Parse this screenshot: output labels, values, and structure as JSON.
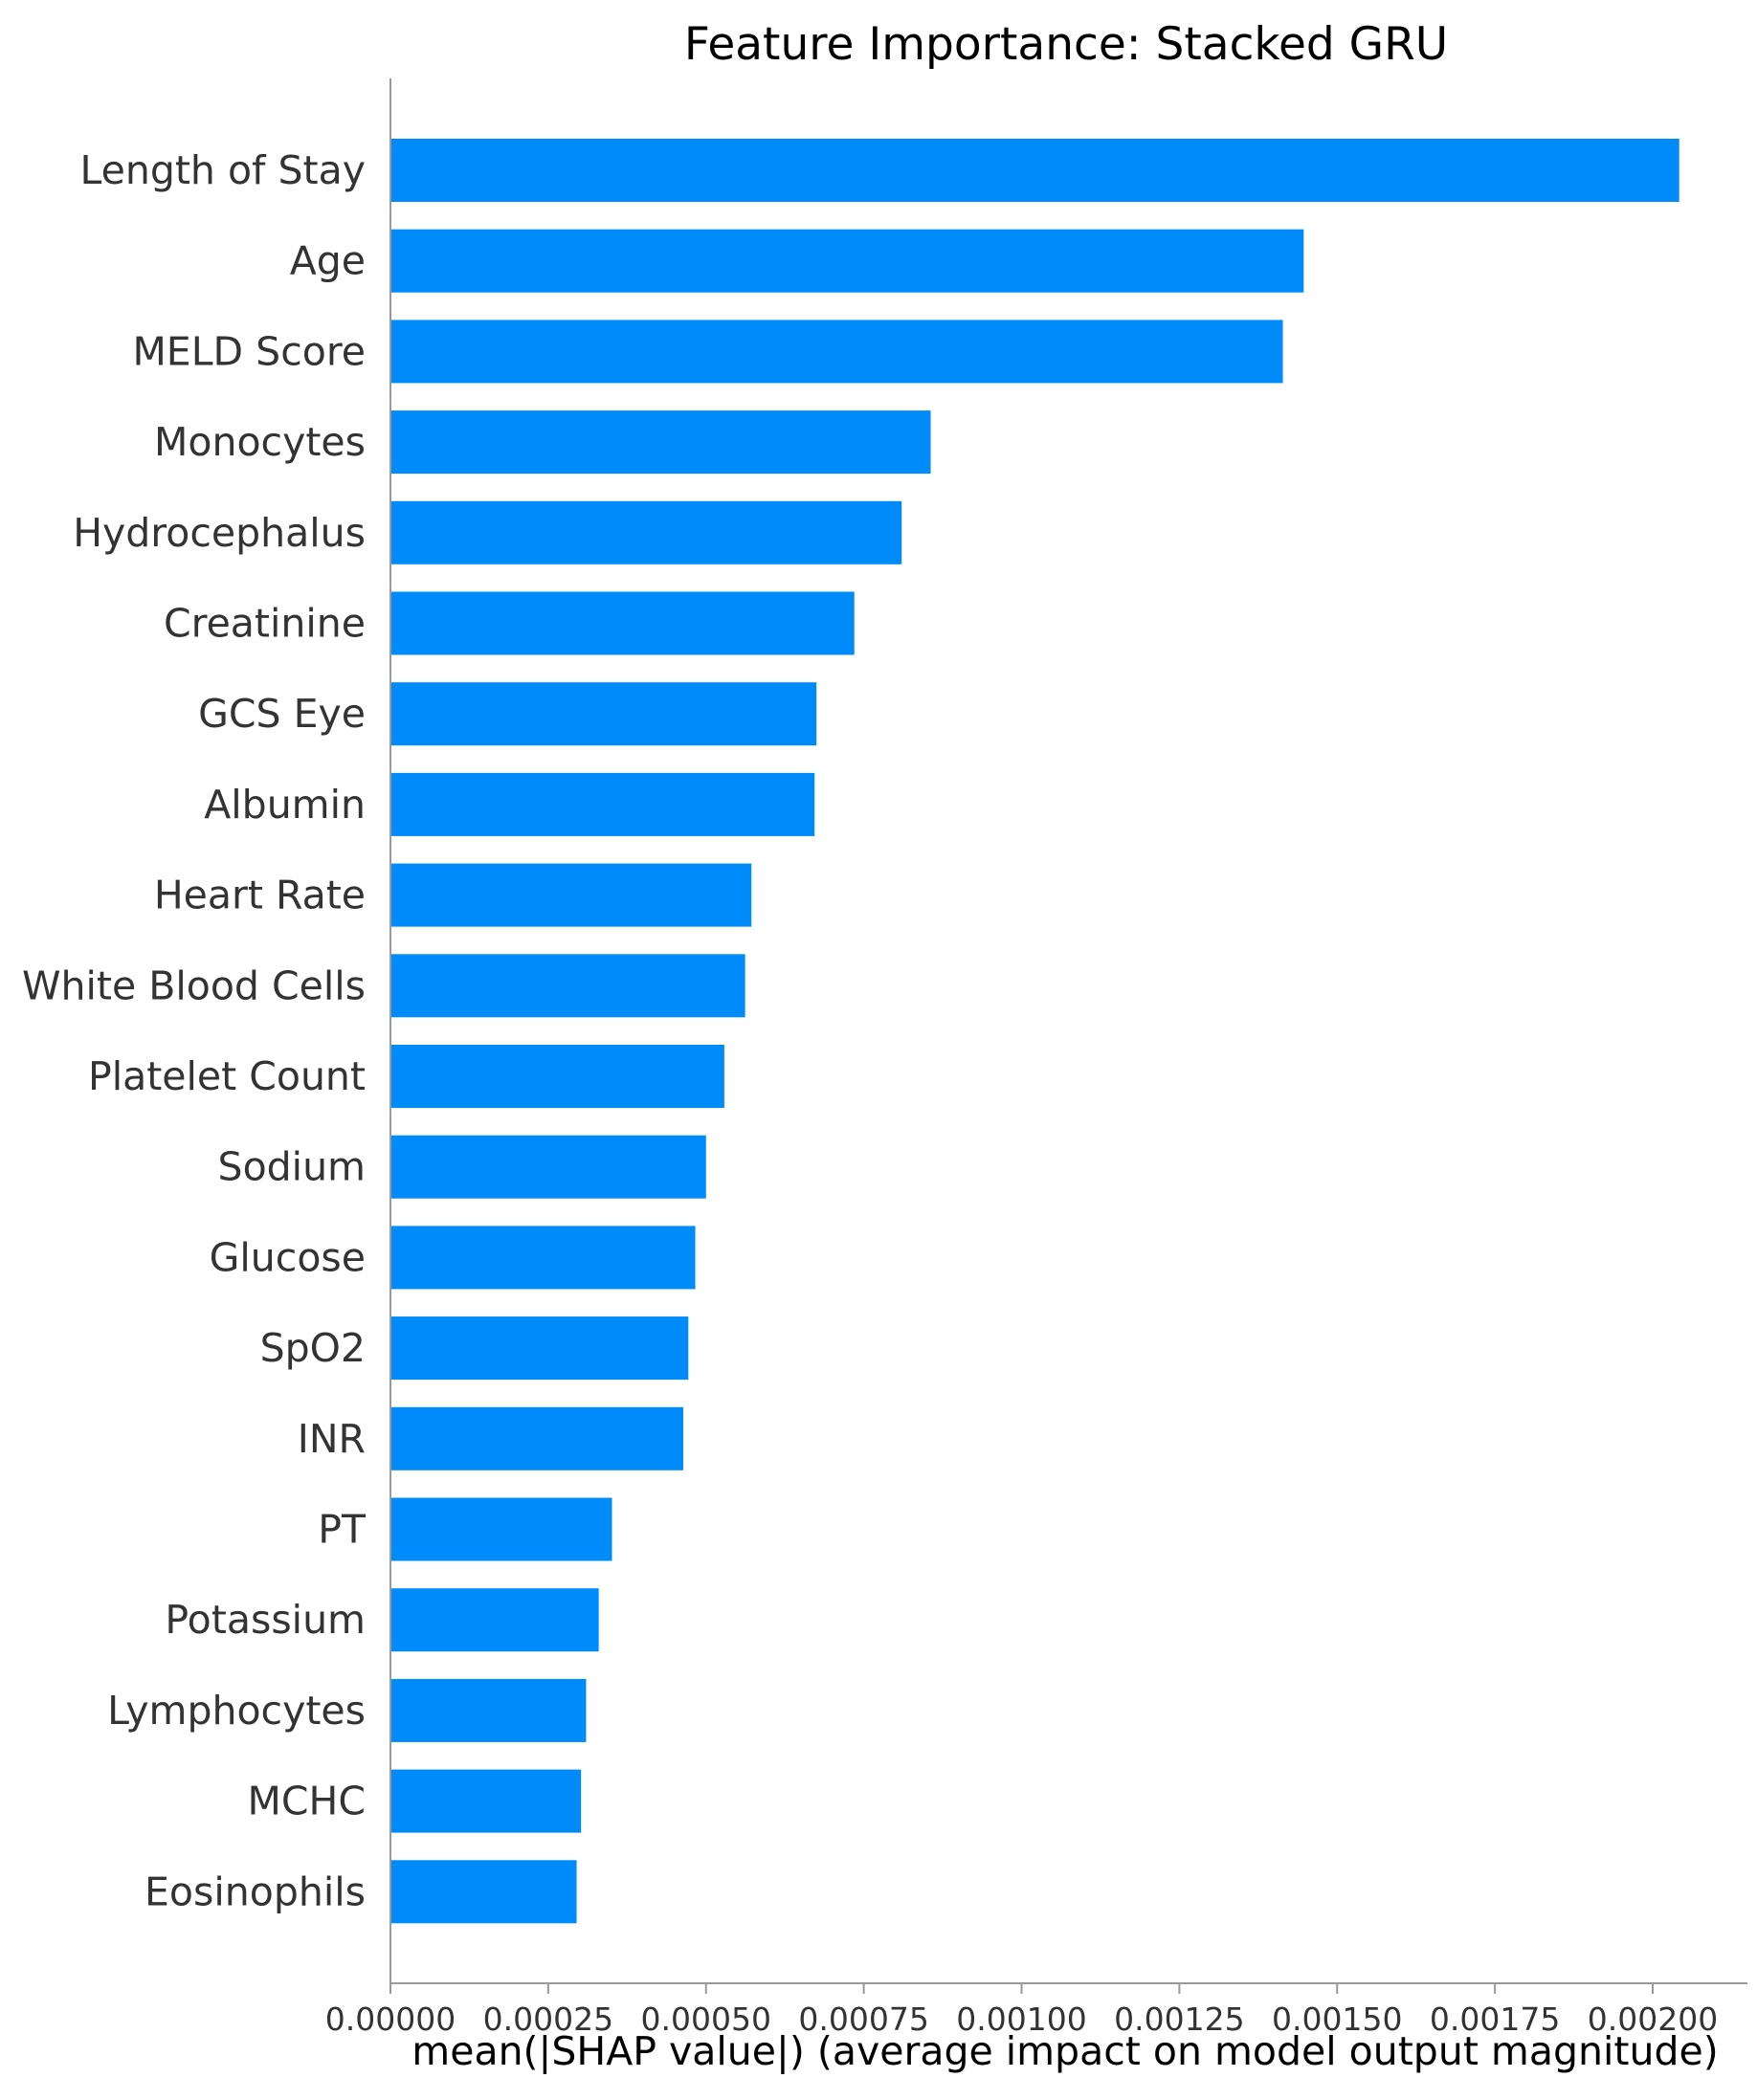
{
  "chart_data": {
    "type": "bar",
    "orientation": "horizontal",
    "title": "Feature Importance: Stacked GRU",
    "xlabel": "mean(|SHAP value|) (average impact on model output magnitude)",
    "ylabel": "",
    "categories": [
      "Length of Stay",
      "Age",
      "MELD Score",
      "Monocytes",
      "Hydrocephalus",
      "Creatinine",
      "GCS Eye",
      "Albumin",
      "Heart Rate",
      "White Blood Cells",
      "Platelet Count",
      "Sodium",
      "Glucose",
      "SpO2",
      "INR",
      "PT",
      "Potassium",
      "Lymphocytes",
      "MCHC",
      "Eosinophils"
    ],
    "values": [
      0.002042,
      0.001447,
      0.001414,
      0.000856,
      0.00081,
      0.000735,
      0.000675,
      0.000672,
      0.000572,
      0.000562,
      0.000529,
      0.0005,
      0.000483,
      0.000472,
      0.000464,
      0.000351,
      0.00033,
      0.00031,
      0.000302,
      0.000295
    ],
    "xlim": [
      0,
      0.00215
    ],
    "xticks": [
      0,
      0.00025,
      0.0005,
      0.00075,
      0.001,
      0.00125,
      0.0015,
      0.00175,
      0.002
    ],
    "xtick_labels": [
      "0.00000",
      "0.00025",
      "0.00050",
      "0.00075",
      "0.00100",
      "0.00125",
      "0.00150",
      "0.00175",
      "0.00200"
    ],
    "grid": false,
    "legend": "none",
    "colors": {
      "bar": "#008bfb",
      "axis": "#999999",
      "label_text": "#333333"
    }
  }
}
